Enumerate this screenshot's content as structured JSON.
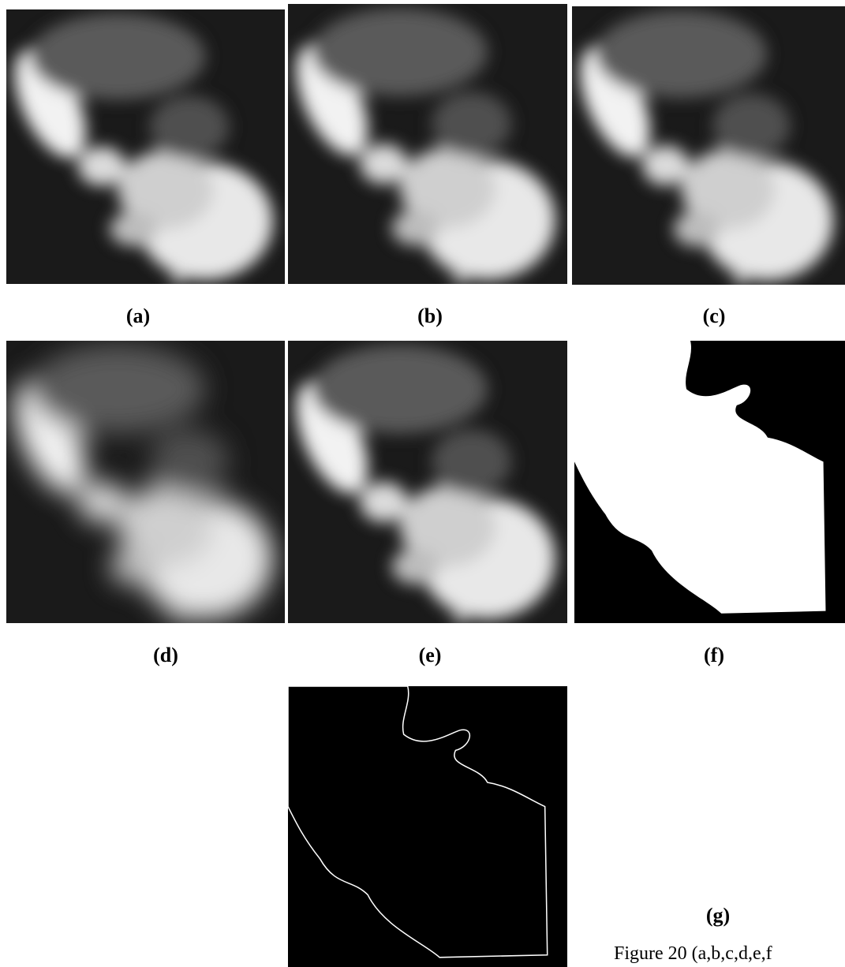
{
  "panels": [
    {
      "label": "(a)"
    },
    {
      "label": "(b)"
    },
    {
      "label": "(c)"
    },
    {
      "label": "(d)"
    },
    {
      "label": "(e)"
    },
    {
      "label": "(f)"
    },
    {
      "label": "(g)"
    }
  ],
  "caption": "Figure 20 (a,b,c,d,e,f"
}
